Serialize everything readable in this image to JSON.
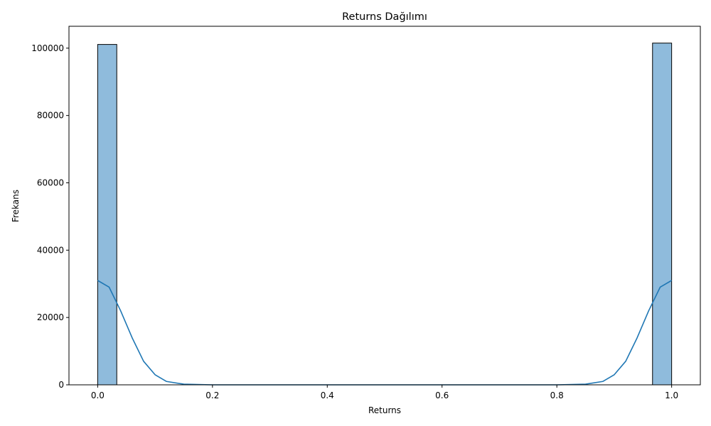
{
  "chart_data": {
    "type": "bar",
    "title": "Returns Dağılımı",
    "xlabel": "Returns",
    "ylabel": "Frekans",
    "xlim": [
      -0.05,
      1.05
    ],
    "ylim": [
      0,
      106500
    ],
    "x_ticks": [
      0.0,
      0.2,
      0.4,
      0.6,
      0.8,
      1.0
    ],
    "x_tick_labels": [
      "0.0",
      "0.2",
      "0.4",
      "0.6",
      "0.8",
      "1.0"
    ],
    "y_ticks": [
      0,
      20000,
      40000,
      60000,
      80000,
      100000
    ],
    "y_tick_labels": [
      "0",
      "20000",
      "40000",
      "60000",
      "80000",
      "100000"
    ],
    "bins": [
      {
        "x0": 0.0,
        "x1": 0.0333,
        "count": 101100
      },
      {
        "x0": 0.9667,
        "x1": 1.0,
        "count": 101500
      }
    ],
    "kde": {
      "x": [
        0.0,
        0.02,
        0.04,
        0.06,
        0.08,
        0.1,
        0.12,
        0.15,
        0.2,
        0.3,
        0.5,
        0.7,
        0.8,
        0.85,
        0.88,
        0.9,
        0.92,
        0.94,
        0.96,
        0.98,
        1.0
      ],
      "y": [
        31000,
        29000,
        22000,
        14000,
        7000,
        3000,
        1000,
        200,
        0,
        0,
        0,
        0,
        0,
        200,
        1000,
        3000,
        7000,
        14000,
        22000,
        29000,
        31000
      ]
    },
    "bar_fill": "#8fbbdc",
    "bar_edge": "#000000",
    "kde_color": "#1f77b4",
    "grid": false
  }
}
